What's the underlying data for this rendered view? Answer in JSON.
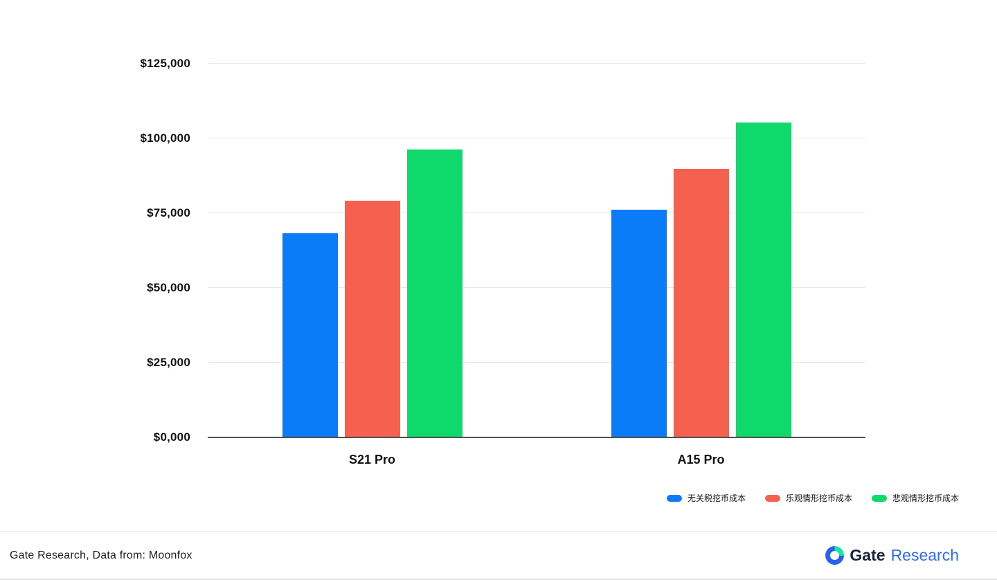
{
  "chart_data": {
    "type": "bar",
    "title": "",
    "categories": [
      "S21 Pro",
      "A15 Pro"
    ],
    "series": [
      {
        "name": "无关税挖币成本",
        "color": "#0b7bf8",
        "values": [
          68000,
          76000
        ]
      },
      {
        "name": "乐观情形挖币成本",
        "color": "#f6604e",
        "values": [
          79000,
          89500
        ]
      },
      {
        "name": "悲观情形挖币成本",
        "color": "#0fd96b",
        "values": [
          96000,
          105000
        ]
      }
    ],
    "y_ticks": [
      {
        "label": "$125,000",
        "value": 125000
      },
      {
        "label": "$100,000",
        "value": 100000
      },
      {
        "label": "$75,000",
        "value": 75000
      },
      {
        "label": "$50,000",
        "value": 50000
      },
      {
        "label": "$25,000",
        "value": 25000
      },
      {
        "label": "$0,000",
        "value": 0
      }
    ],
    "ylim": [
      0,
      125000
    ],
    "xlabel": "",
    "ylabel": "",
    "grid": true,
    "legend_position": "bottom-right"
  },
  "footer": {
    "source_text": "Gate Research, Data from: Moonfox",
    "brand": {
      "gate": "Gate",
      "research": "Research"
    }
  }
}
